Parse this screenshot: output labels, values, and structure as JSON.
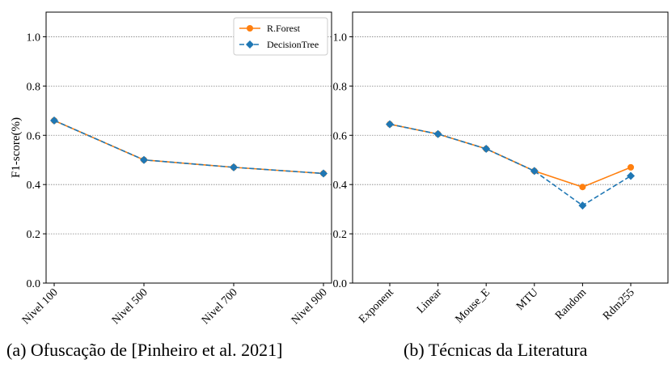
{
  "chart_data": [
    {
      "type": "line",
      "caption": "(a) Ofuscação de [Pinheiro et al. 2021]",
      "ylabel": "F1-score(%)",
      "xlabel": "",
      "ylim": [
        0.0,
        1.1
      ],
      "yticks": [
        "0.0",
        "0.2",
        "0.4",
        "0.6",
        "0.8",
        "1.0"
      ],
      "grid": "y",
      "legend": "top-right",
      "categories": [
        "Nivel 100",
        "Nivel 500",
        "Nivel 700",
        "Nivel 900"
      ],
      "series": [
        {
          "name": "R.Forest",
          "color": "#ff7f0e",
          "marker": "circle",
          "linestyle": "solid",
          "values": [
            0.66,
            0.5,
            0.47,
            0.445
          ]
        },
        {
          "name": "DecisionTree",
          "color": "#1f77b4",
          "marker": "diamond",
          "linestyle": "dashed",
          "values": [
            0.66,
            0.5,
            0.47,
            0.445
          ]
        }
      ]
    },
    {
      "type": "line",
      "caption": "(b) Técnicas da Literatura",
      "ylabel": "",
      "xlabel": "",
      "ylim": [
        0.0,
        1.1
      ],
      "yticks": [
        "0.0",
        "0.2",
        "0.4",
        "0.6",
        "0.8",
        "1.0"
      ],
      "grid": "y",
      "categories": [
        "Exponent",
        "Linear",
        "Mouse_E",
        "MTU",
        "Random",
        "Rdm255"
      ],
      "series": [
        {
          "name": "R.Forest",
          "color": "#ff7f0e",
          "marker": "circle",
          "linestyle": "solid",
          "values": [
            0.645,
            0.605,
            0.545,
            0.455,
            0.39,
            0.47
          ]
        },
        {
          "name": "DecisionTree",
          "color": "#1f77b4",
          "marker": "diamond",
          "linestyle": "dashed",
          "values": [
            0.645,
            0.605,
            0.545,
            0.455,
            0.315,
            0.435
          ]
        }
      ]
    }
  ]
}
